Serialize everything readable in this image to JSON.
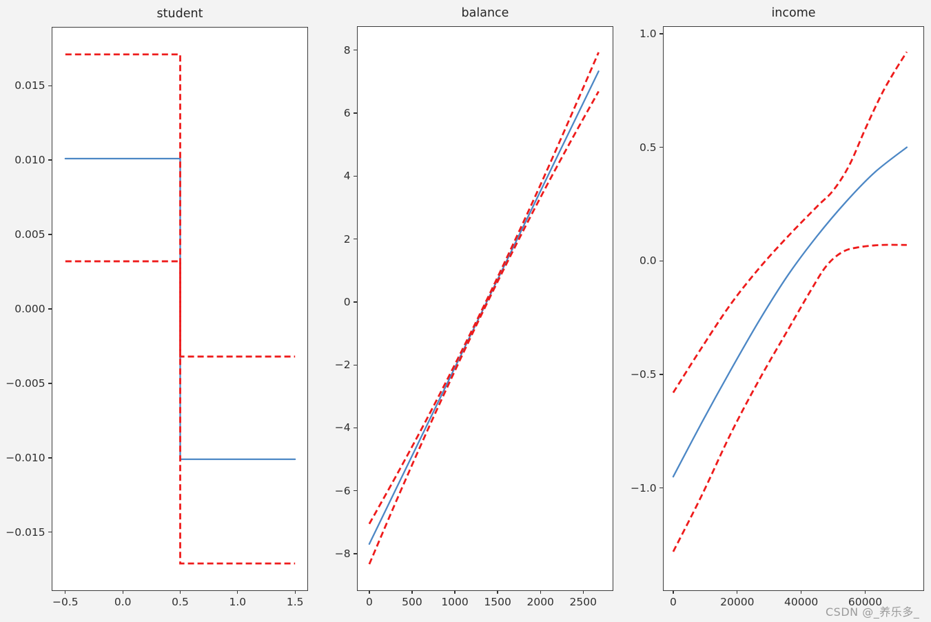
{
  "figure": {
    "background": "#f3f3f3",
    "axes_background": "#ffffff",
    "spine_color": "#3b3b3b",
    "tick_color": "#333333",
    "title_color": "#262626",
    "line_color": "#4c87c5",
    "ci_color": "#ee1b1b"
  },
  "watermark": {
    "text": "CSDN @_养乐多_",
    "color": "#9b9b9b"
  },
  "chart_data": [
    {
      "type": "line",
      "title": "student",
      "xlabel": "",
      "ylabel": "",
      "grid": false,
      "legend": null,
      "xlim": [
        -0.613,
        1.607
      ],
      "ylim": [
        -0.0189,
        0.0189
      ],
      "xticks": [
        -0.5,
        0.0,
        0.5,
        1.0,
        1.5
      ],
      "xtick_labels": [
        "−0.5",
        "0.0",
        "0.5",
        "1.0",
        "1.5"
      ],
      "yticks": [
        0.015,
        0.01,
        0.005,
        0.0,
        -0.005,
        -0.01,
        -0.015
      ],
      "ytick_labels": [
        "0.015",
        "0.010",
        "0.005",
        "0.000",
        "−0.005",
        "−0.010",
        "−0.015"
      ],
      "series": [
        {
          "name": "partial dependence",
          "color": "#4c87c5",
          "style": "solid",
          "smooth": false,
          "points": [
            [
              -0.5,
              0.0101
            ],
            [
              0.5,
              0.0101
            ],
            [
              0.5,
              -0.0101
            ],
            [
              1.5,
              -0.0101
            ]
          ]
        },
        {
          "name": "confidence upper",
          "color": "#ee1b1b",
          "style": "dashed",
          "smooth": false,
          "points": [
            [
              -0.5,
              0.0171
            ],
            [
              0.5,
              0.0171
            ],
            [
              0.5,
              -0.0032
            ],
            [
              1.5,
              -0.0032
            ]
          ]
        },
        {
          "name": "confidence lower",
          "color": "#ee1b1b",
          "style": "dashed",
          "smooth": false,
          "points": [
            [
              -0.5,
              0.0032
            ],
            [
              0.5,
              0.0032
            ],
            [
              0.5,
              -0.0171
            ],
            [
              1.5,
              -0.0171
            ]
          ]
        }
      ]
    },
    {
      "type": "line",
      "title": "balance",
      "xlabel": "",
      "ylabel": "",
      "grid": false,
      "legend": null,
      "xlim": [
        -136,
        2844
      ],
      "ylim": [
        -9.16,
        8.74
      ],
      "xticks": [
        0,
        500,
        1000,
        1500,
        2000,
        2500
      ],
      "xtick_labels": [
        "0",
        "500",
        "1000",
        "1500",
        "2000",
        "2500"
      ],
      "yticks": [
        8,
        6,
        4,
        2,
        0,
        -2,
        -4,
        -6,
        -8
      ],
      "ytick_labels": [
        "8",
        "6",
        "4",
        "2",
        "0",
        "−2",
        "−4",
        "−6",
        "−8"
      ],
      "series": [
        {
          "name": "partial dependence",
          "color": "#4c87c5",
          "style": "solid",
          "smooth": false,
          "points": [
            [
              0,
              -7.69
            ],
            [
              2680,
              7.33
            ]
          ]
        },
        {
          "name": "confidence upper",
          "color": "#ee1b1b",
          "style": "dashed",
          "smooth": true,
          "points": [
            [
              0,
              -7.05
            ],
            [
              335,
              -5.42
            ],
            [
              670,
              -3.73
            ],
            [
              1005,
              -1.96
            ],
            [
              1340,
              -0.12
            ],
            [
              1675,
              1.8
            ],
            [
              2010,
              3.78
            ],
            [
              2345,
              5.84
            ],
            [
              2680,
              7.93
            ]
          ]
        },
        {
          "name": "confidence lower",
          "color": "#ee1b1b",
          "style": "dashed",
          "smooth": true,
          "points": [
            [
              0,
              -8.33
            ],
            [
              335,
              -6.2
            ],
            [
              670,
              -4.14
            ],
            [
              1005,
              -2.16
            ],
            [
              1340,
              -0.24
            ],
            [
              1675,
              1.6
            ],
            [
              2010,
              3.37
            ],
            [
              2345,
              5.06
            ],
            [
              2680,
              6.69
            ]
          ]
        }
      ]
    },
    {
      "type": "line",
      "title": "income",
      "xlabel": "",
      "ylabel": "",
      "grid": false,
      "legend": null,
      "xlim": [
        -3000,
        78200
      ],
      "ylim": [
        -1.45,
        1.03
      ],
      "xticks": [
        0,
        20000,
        40000,
        60000
      ],
      "xtick_labels": [
        "0",
        "20000",
        "40000",
        "60000"
      ],
      "yticks": [
        1.0,
        0.5,
        0.0,
        -0.5,
        -1.0
      ],
      "ytick_labels": [
        "1.0",
        "0.5",
        "0.0",
        "−0.5",
        "−1.0"
      ],
      "series": [
        {
          "name": "partial dependence",
          "color": "#4c87c5",
          "style": "solid",
          "smooth": true,
          "points": [
            [
              0,
              -0.95
            ],
            [
              9000,
              -0.71
            ],
            [
              18000,
              -0.48
            ],
            [
              27000,
              -0.26
            ],
            [
              36000,
              -0.06
            ],
            [
              45000,
              0.11
            ],
            [
              54000,
              0.26
            ],
            [
              63000,
              0.39
            ],
            [
              73000,
              0.5
            ]
          ]
        },
        {
          "name": "confidence upper",
          "color": "#ee1b1b",
          "style": "dashed",
          "smooth": true,
          "points": [
            [
              0,
              -0.58
            ],
            [
              9000,
              -0.38
            ],
            [
              18000,
              -0.19
            ],
            [
              27000,
              -0.03
            ],
            [
              36000,
              0.11
            ],
            [
              45000,
              0.24
            ],
            [
              50000,
              0.31
            ],
            [
              55000,
              0.42
            ],
            [
              60000,
              0.58
            ],
            [
              65000,
              0.73
            ],
            [
              69000,
              0.83
            ],
            [
              73000,
              0.92
            ]
          ]
        },
        {
          "name": "confidence lower",
          "color": "#ee1b1b",
          "style": "dashed",
          "smooth": true,
          "points": [
            [
              0,
              -1.28
            ],
            [
              9000,
              -1.03
            ],
            [
              18000,
              -0.76
            ],
            [
              27000,
              -0.52
            ],
            [
              36000,
              -0.3
            ],
            [
              43000,
              -0.13
            ],
            [
              48000,
              -0.02
            ],
            [
              53000,
              0.04
            ],
            [
              58000,
              0.06
            ],
            [
              65000,
              0.07
            ],
            [
              73000,
              0.07
            ]
          ]
        }
      ]
    }
  ]
}
